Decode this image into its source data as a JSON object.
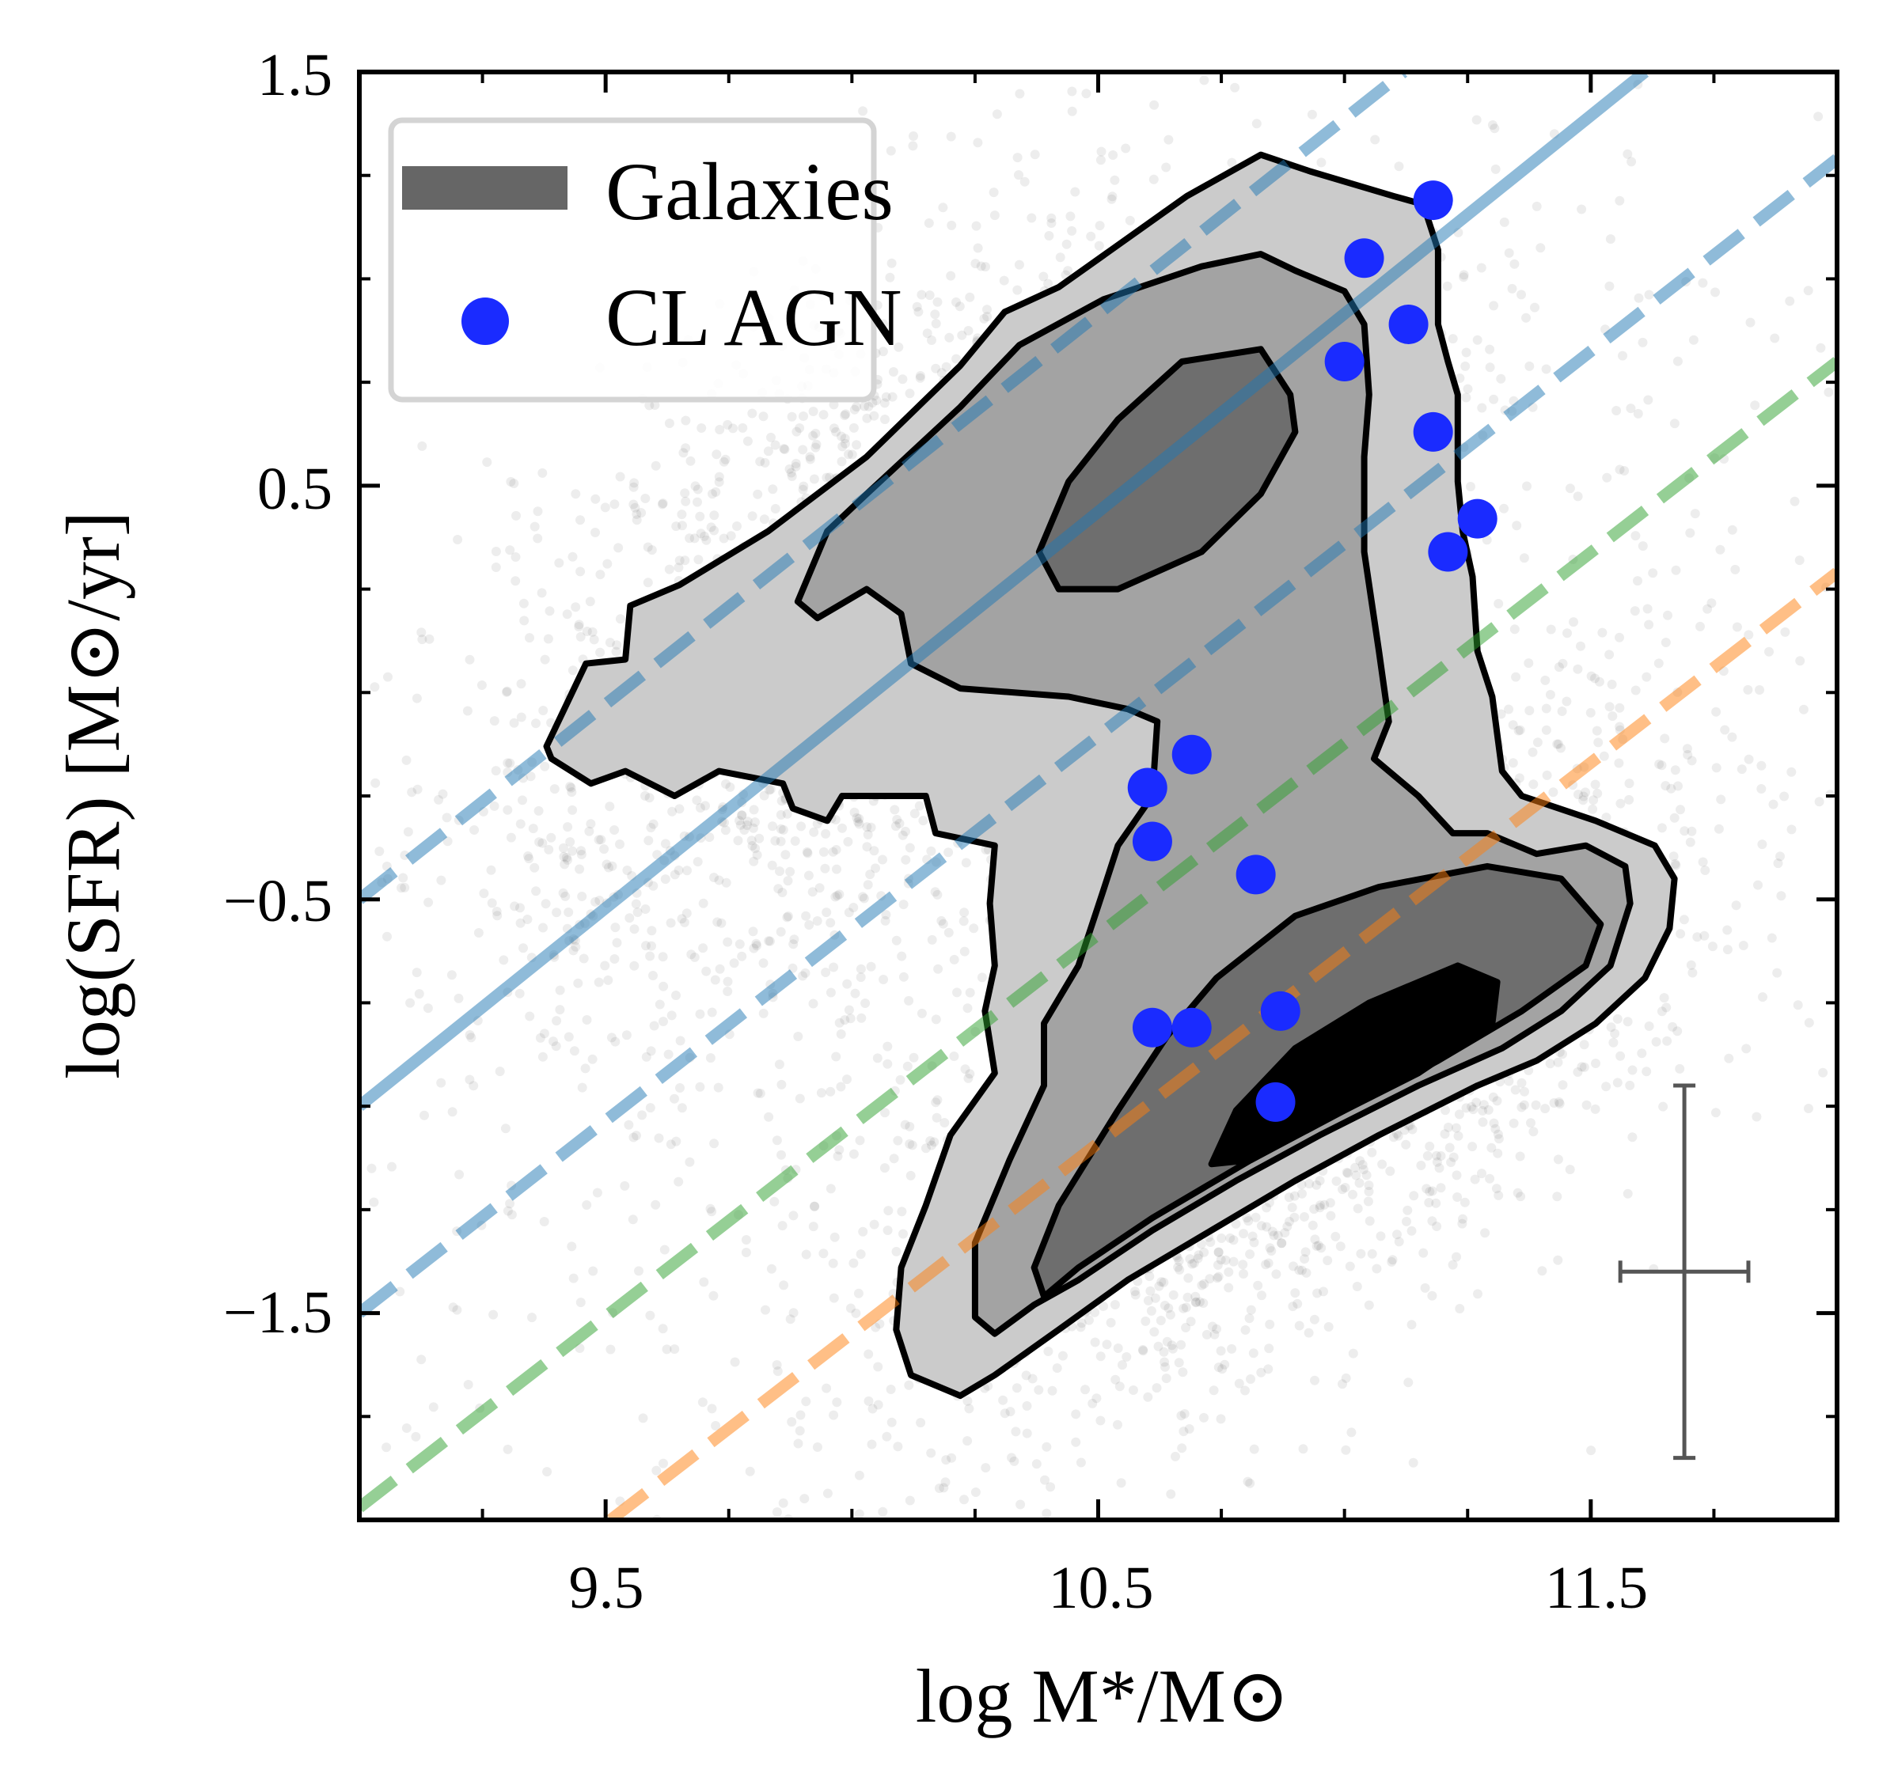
{
  "chart_data": {
    "type": "scatter",
    "xlabel": "log M*/M⊙",
    "ylabel": "log(SFR) [M⊙/yr]",
    "xlim": [
      9.0,
      12.0
    ],
    "ylim": [
      -2.0,
      1.5
    ],
    "xticks": [
      9.5,
      10.5,
      11.5
    ],
    "xtick_labels": [
      "9.5",
      "10.5",
      "11.5"
    ],
    "yticks": [
      1.5,
      0.5,
      -0.5,
      -1.5
    ],
    "ytick_labels": [
      "1.5",
      "0.5",
      "−0.5",
      "−1.5"
    ],
    "minor_tick_step": 0.25,
    "grid": false,
    "legend": {
      "placement": "top-left",
      "entries": [
        {
          "label": "Galaxies",
          "marker": "patch",
          "color": "#666666"
        },
        {
          "label": "CL AGN",
          "marker": "circle",
          "color": "#1a2bff"
        }
      ]
    },
    "series": [
      {
        "name": "CL AGN",
        "type": "scatter",
        "color": "#1a2bff",
        "points": [
          [
            11.18,
            1.19
          ],
          [
            11.04,
            1.05
          ],
          [
            11.13,
            0.89
          ],
          [
            11.0,
            0.8
          ],
          [
            11.18,
            0.63
          ],
          [
            11.27,
            0.42
          ],
          [
            11.21,
            0.34
          ],
          [
            10.69,
            -0.15
          ],
          [
            10.6,
            -0.23
          ],
          [
            10.61,
            -0.36
          ],
          [
            10.82,
            -0.44
          ],
          [
            10.61,
            -0.81
          ],
          [
            10.69,
            -0.81
          ],
          [
            10.87,
            -0.77
          ],
          [
            10.86,
            -0.99
          ]
        ]
      }
    ],
    "galaxy_contours": {
      "fill_colors": [
        "#cbcbcb",
        "#a3a3a3",
        "#6e6e6e",
        "#000000"
      ],
      "levels": [
        {
          "level": 1,
          "polygons": [
            [
              [
                9.38,
                -0.13
              ],
              [
                9.46,
                0.07
              ],
              [
                9.54,
                0.08
              ],
              [
                9.55,
                0.21
              ],
              [
                9.65,
                0.26
              ],
              [
                9.83,
                0.39
              ],
              [
                10.03,
                0.57
              ],
              [
                10.22,
                0.79
              ],
              [
                10.31,
                0.92
              ],
              [
                10.42,
                0.98
              ],
              [
                10.68,
                1.2
              ],
              [
                10.83,
                1.3
              ],
              [
                10.93,
                1.26
              ],
              [
                11.1,
                1.2
              ],
              [
                11.16,
                1.18
              ],
              [
                11.19,
                1.07
              ],
              [
                11.19,
                0.89
              ],
              [
                11.21,
                0.8
              ],
              [
                11.23,
                0.72
              ],
              [
                11.23,
                0.51
              ],
              [
                11.24,
                0.39
              ],
              [
                11.26,
                0.28
              ],
              [
                11.27,
                0.1
              ],
              [
                11.3,
                -0.01
              ],
              [
                11.32,
                -0.19
              ],
              [
                11.36,
                -0.25
              ],
              [
                11.51,
                -0.31
              ],
              [
                11.63,
                -0.37
              ],
              [
                11.67,
                -0.45
              ],
              [
                11.66,
                -0.57
              ],
              [
                11.61,
                -0.69
              ],
              [
                11.51,
                -0.8
              ],
              [
                11.39,
                -0.89
              ],
              [
                11.27,
                -0.95
              ],
              [
                11.07,
                -1.07
              ],
              [
                10.9,
                -1.18
              ],
              [
                10.73,
                -1.3
              ],
              [
                10.56,
                -1.42
              ],
              [
                10.42,
                -1.54
              ],
              [
                10.29,
                -1.65
              ],
              [
                10.22,
                -1.7
              ],
              [
                10.12,
                -1.65
              ],
              [
                10.09,
                -1.54
              ],
              [
                10.1,
                -1.39
              ],
              [
                10.15,
                -1.24
              ],
              [
                10.2,
                -1.07
              ],
              [
                10.29,
                -0.92
              ],
              [
                10.27,
                -0.77
              ],
              [
                10.29,
                -0.66
              ],
              [
                10.28,
                -0.51
              ],
              [
                10.29,
                -0.37
              ],
              [
                10.17,
                -0.34
              ],
              [
                10.15,
                -0.25
              ],
              [
                9.98,
                -0.25
              ],
              [
                9.95,
                -0.31
              ],
              [
                9.88,
                -0.28
              ],
              [
                9.86,
                -0.22
              ],
              [
                9.73,
                -0.19
              ],
              [
                9.64,
                -0.25
              ],
              [
                9.54,
                -0.19
              ],
              [
                9.47,
                -0.22
              ],
              [
                9.39,
                -0.16
              ]
            ]
          ]
        },
        {
          "level": 2,
          "polygons": [
            [
              [
                9.89,
                0.22
              ],
              [
                9.95,
                0.39
              ],
              [
                10.03,
                0.48
              ],
              [
                10.22,
                0.69
              ],
              [
                10.34,
                0.84
              ],
              [
                10.51,
                0.95
              ],
              [
                10.71,
                1.03
              ],
              [
                10.83,
                1.06
              ],
              [
                10.9,
                1.02
              ],
              [
                11.0,
                0.97
              ],
              [
                11.04,
                0.89
              ],
              [
                11.05,
                0.72
              ],
              [
                11.04,
                0.57
              ],
              [
                11.04,
                0.34
              ],
              [
                11.07,
                0.1
              ],
              [
                11.09,
                -0.07
              ],
              [
                11.06,
                -0.16
              ],
              [
                11.15,
                -0.25
              ],
              [
                11.22,
                -0.34
              ],
              [
                11.29,
                -0.34
              ],
              [
                11.39,
                -0.39
              ],
              [
                11.49,
                -0.37
              ],
              [
                11.57,
                -0.42
              ],
              [
                11.58,
                -0.51
              ],
              [
                11.54,
                -0.66
              ],
              [
                11.44,
                -0.77
              ],
              [
                11.32,
                -0.86
              ],
              [
                11.15,
                -0.95
              ],
              [
                10.95,
                -1.07
              ],
              [
                10.78,
                -1.18
              ],
              [
                10.61,
                -1.3
              ],
              [
                10.46,
                -1.42
              ],
              [
                10.37,
                -1.48
              ],
              [
                10.29,
                -1.55
              ],
              [
                10.25,
                -1.51
              ],
              [
                10.25,
                -1.33
              ],
              [
                10.32,
                -1.13
              ],
              [
                10.39,
                -0.95
              ],
              [
                10.39,
                -0.8
              ],
              [
                10.46,
                -0.66
              ],
              [
                10.51,
                -0.48
              ],
              [
                10.54,
                -0.37
              ],
              [
                10.61,
                -0.25
              ],
              [
                10.62,
                -0.07
              ],
              [
                10.56,
                -0.04
              ],
              [
                10.44,
                -0.01
              ],
              [
                10.22,
                0.01
              ],
              [
                10.12,
                0.07
              ],
              [
                10.1,
                0.19
              ],
              [
                10.03,
                0.25
              ],
              [
                9.93,
                0.18
              ]
            ]
          ]
        },
        {
          "level": 3,
          "polygons": [
            [
              [
                10.38,
                0.34
              ],
              [
                10.44,
                0.51
              ],
              [
                10.54,
                0.66
              ],
              [
                10.67,
                0.8
              ],
              [
                10.83,
                0.83
              ],
              [
                10.89,
                0.72
              ],
              [
                10.9,
                0.63
              ],
              [
                10.83,
                0.48
              ],
              [
                10.71,
                0.34
              ],
              [
                10.54,
                0.25
              ],
              [
                10.42,
                0.25
              ]
            ],
            [
              [
                10.74,
                -0.69
              ],
              [
                10.9,
                -0.54
              ],
              [
                11.07,
                -0.47
              ],
              [
                11.29,
                -0.42
              ],
              [
                11.44,
                -0.45
              ],
              [
                11.52,
                -0.56
              ],
              [
                11.49,
                -0.66
              ],
              [
                11.36,
                -0.77
              ],
              [
                11.19,
                -0.89
              ],
              [
                11.0,
                -1.01
              ],
              [
                10.81,
                -1.13
              ],
              [
                10.61,
                -1.27
              ],
              [
                10.46,
                -1.39
              ],
              [
                10.39,
                -1.46
              ],
              [
                10.37,
                -1.39
              ],
              [
                10.42,
                -1.24
              ],
              [
                10.54,
                -1.01
              ],
              [
                10.64,
                -0.83
              ]
            ]
          ]
        },
        {
          "level": 4,
          "polygons": [
            [
              [
                10.73,
                -1.14
              ],
              [
                10.78,
                -1.01
              ],
              [
                10.9,
                -0.86
              ],
              [
                11.05,
                -0.75
              ],
              [
                11.23,
                -0.66
              ],
              [
                11.31,
                -0.7
              ],
              [
                11.3,
                -0.8
              ],
              [
                11.15,
                -0.92
              ],
              [
                10.95,
                -1.04
              ],
              [
                10.81,
                -1.13
              ]
            ]
          ]
        }
      ]
    },
    "reference_lines": [
      {
        "name": "main-sequence",
        "style": "solid",
        "color": "#1f77b4",
        "from": [
          9.0,
          -1.0
        ],
        "to": [
          11.61,
          1.5
        ]
      },
      {
        "name": "main-sequence-upper",
        "style": "dashed",
        "color": "#1f77b4",
        "from": [
          9.0,
          -0.5
        ],
        "to": [
          11.12,
          1.5
        ]
      },
      {
        "name": "main-sequence-lower",
        "style": "dashed",
        "color": "#1f77b4",
        "from": [
          9.0,
          -1.5
        ],
        "to": [
          12.0,
          1.29
        ]
      },
      {
        "name": "green-valley",
        "style": "dashed",
        "color": "#2ca02c",
        "from": [
          9.0,
          -1.97
        ],
        "to": [
          12.0,
          0.8
        ]
      },
      {
        "name": "quiescent",
        "style": "dashed",
        "color": "#ff7f0e",
        "from": [
          9.51,
          -2.0
        ],
        "to": [
          12.0,
          0.29
        ]
      }
    ],
    "typical_error": {
      "center": [
        11.69,
        -1.4
      ],
      "xerr": 0.13,
      "yerr": 0.45,
      "color": "#555555"
    }
  }
}
